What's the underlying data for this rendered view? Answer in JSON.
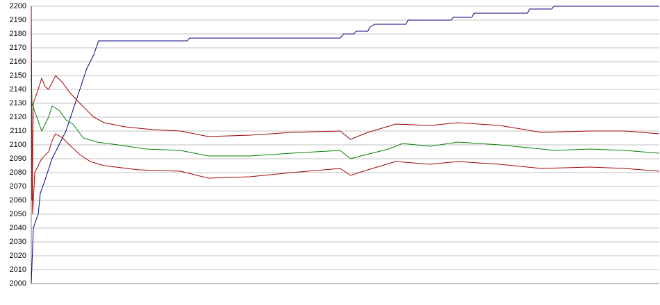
{
  "chart_data": {
    "type": "line",
    "ylim": [
      2000,
      2200
    ],
    "yticks": [
      2000,
      2010,
      2020,
      2030,
      2040,
      2050,
      2060,
      2070,
      2080,
      2090,
      2100,
      2110,
      2120,
      2130,
      2140,
      2150,
      2160,
      2170,
      2180,
      2190,
      2200
    ],
    "xlim": [
      0,
      905
    ],
    "grid": true,
    "series": [
      {
        "color": "#000080",
        "x": [
          0,
          3,
          7,
          10,
          13,
          20,
          30,
          40,
          50,
          60,
          70,
          80,
          90,
          97,
          225,
          228,
          445,
          450,
          465,
          468,
          485,
          488,
          495,
          540,
          543,
          605,
          608,
          635,
          638,
          715,
          718,
          750,
          753,
          905
        ],
        "values": [
          2000,
          2040,
          2046,
          2050,
          2065,
          2075,
          2090,
          2100,
          2110,
          2125,
          2140,
          2155,
          2165,
          2175,
          2175,
          2177,
          2177,
          2180,
          2180,
          2182,
          2182,
          2185,
          2187,
          2187,
          2190,
          2190,
          2192,
          2192,
          2195,
          2195,
          2198,
          2198,
          2200,
          2200
        ]
      },
      {
        "color": "#a00000",
        "x": [
          0,
          1,
          3,
          10,
          15,
          20,
          25,
          35,
          45,
          55,
          70,
          90,
          105,
          135,
          175,
          215,
          255,
          315,
          375,
          445,
          460,
          485,
          525,
          575,
          615,
          675,
          735,
          805,
          855,
          905
        ],
        "values": [
          2200,
          2060,
          2130,
          2140,
          2148,
          2142,
          2140,
          2150,
          2145,
          2138,
          2130,
          2120,
          2116,
          2113,
          2111,
          2110,
          2106,
          2107,
          2109,
          2110,
          2104,
          2109,
          2115,
          2114,
          2116,
          2114,
          2109,
          2110,
          2110,
          2108
        ]
      },
      {
        "color": "#008000",
        "x": [
          0,
          1,
          15,
          25,
          30,
          40,
          50,
          60,
          75,
          95,
          125,
          165,
          215,
          255,
          315,
          375,
          445,
          460,
          475,
          515,
          535,
          575,
          615,
          675,
          735,
          755,
          805,
          855,
          905
        ],
        "values": [
          2150,
          2130,
          2110,
          2120,
          2128,
          2125,
          2118,
          2115,
          2105,
          2102,
          2100,
          2097,
          2096,
          2092,
          2092,
          2094,
          2096,
          2090,
          2092,
          2097,
          2101,
          2099,
          2102,
          2100,
          2097,
          2096,
          2097,
          2096,
          2094
        ]
      },
      {
        "color": "#a00000",
        "x": [
          0,
          2,
          5,
          15,
          25,
          30,
          35,
          45,
          55,
          70,
          85,
          105,
          155,
          215,
          255,
          315,
          375,
          445,
          460,
          485,
          525,
          575,
          615,
          675,
          735,
          805,
          855,
          905
        ],
        "values": [
          2175,
          2050,
          2080,
          2090,
          2095,
          2103,
          2108,
          2105,
          2100,
          2093,
          2088,
          2085,
          2082,
          2081,
          2076,
          2077,
          2080,
          2083,
          2078,
          2082,
          2088,
          2086,
          2088,
          2086,
          2083,
          2084,
          2083,
          2081
        ]
      }
    ]
  }
}
